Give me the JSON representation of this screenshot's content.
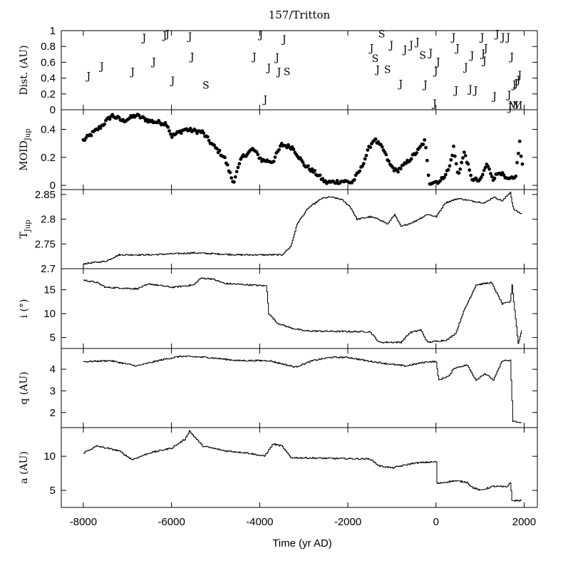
{
  "chart_data": {
    "type": "line",
    "title": "157/Tritton",
    "xlabel": "Time (yr AD)",
    "xlim": [
      -8500,
      2300
    ],
    "xticks": [
      -8000,
      -6000,
      -4000,
      -2000,
      0,
      2000
    ],
    "panels": [
      {
        "id": "dist",
        "ylabel": "Dist. (AU)",
        "kind": "letters",
        "ylim": [
          0,
          1
        ],
        "yticks": [
          0,
          0.2,
          0.4,
          0.6,
          0.8,
          1
        ],
        "ytick_labels": [
          "0",
          "0.2",
          "0.4",
          "0.6",
          "0.8",
          "1"
        ],
        "points": [
          {
            "x": -7880,
            "y": 0.43,
            "label": "J"
          },
          {
            "x": -7580,
            "y": 0.55,
            "label": "J"
          },
          {
            "x": -6880,
            "y": 0.48,
            "label": "J"
          },
          {
            "x": -6620,
            "y": 0.91,
            "label": "J"
          },
          {
            "x": -6400,
            "y": 0.61,
            "label": "J"
          },
          {
            "x": -6150,
            "y": 0.94,
            "label": "J"
          },
          {
            "x": -6090,
            "y": 0.96,
            "label": "J"
          },
          {
            "x": -5970,
            "y": 0.37,
            "label": "J"
          },
          {
            "x": -5580,
            "y": 0.93,
            "label": "J"
          },
          {
            "x": -5530,
            "y": 0.67,
            "label": "J"
          },
          {
            "x": -5220,
            "y": 0.31,
            "label": "S"
          },
          {
            "x": -4120,
            "y": 0.67,
            "label": "J"
          },
          {
            "x": -3970,
            "y": 0.95,
            "label": "J"
          },
          {
            "x": -3870,
            "y": 0.13,
            "label": "J"
          },
          {
            "x": -3790,
            "y": 0.53,
            "label": "J"
          },
          {
            "x": -3600,
            "y": 0.66,
            "label": "J"
          },
          {
            "x": -3560,
            "y": 0.48,
            "label": "J"
          },
          {
            "x": -3440,
            "y": 0.89,
            "label": "J"
          },
          {
            "x": -3380,
            "y": 0.48,
            "label": "S"
          },
          {
            "x": -1460,
            "y": 0.78,
            "label": "J"
          },
          {
            "x": -1380,
            "y": 0.65,
            "label": "S"
          },
          {
            "x": -1320,
            "y": 0.51,
            "label": "J"
          },
          {
            "x": -1230,
            "y": 0.96,
            "label": "S"
          },
          {
            "x": -1100,
            "y": 0.51,
            "label": "S"
          },
          {
            "x": -1010,
            "y": 0.82,
            "label": "J"
          },
          {
            "x": -800,
            "y": 0.33,
            "label": "J"
          },
          {
            "x": -700,
            "y": 0.76,
            "label": "J"
          },
          {
            "x": -560,
            "y": 0.82,
            "label": "J"
          },
          {
            "x": -420,
            "y": 0.86,
            "label": "J"
          },
          {
            "x": -300,
            "y": 0.69,
            "label": "S"
          },
          {
            "x": -240,
            "y": 0.32,
            "label": "J"
          },
          {
            "x": -120,
            "y": 0.72,
            "label": "J"
          },
          {
            "x": -30,
            "y": 0.08,
            "label": "J"
          },
          {
            "x": 0,
            "y": 0.49,
            "label": "J"
          },
          {
            "x": 50,
            "y": 0.61,
            "label": "J"
          },
          {
            "x": 400,
            "y": 0.92,
            "label": "J"
          },
          {
            "x": 460,
            "y": 0.25,
            "label": "J"
          },
          {
            "x": 490,
            "y": 0.78,
            "label": "J"
          },
          {
            "x": 680,
            "y": 0.54,
            "label": "J"
          },
          {
            "x": 780,
            "y": 0.26,
            "label": "J"
          },
          {
            "x": 820,
            "y": 0.69,
            "label": "J"
          },
          {
            "x": 900,
            "y": 0.25,
            "label": "J"
          },
          {
            "x": 1050,
            "y": 0.92,
            "label": "J"
          },
          {
            "x": 1070,
            "y": 0.71,
            "label": "J"
          },
          {
            "x": 1100,
            "y": 0.62,
            "label": "J"
          },
          {
            "x": 1130,
            "y": 0.78,
            "label": "J"
          },
          {
            "x": 1330,
            "y": 0.17,
            "label": "J"
          },
          {
            "x": 1390,
            "y": 0.96,
            "label": "J"
          },
          {
            "x": 1520,
            "y": 0.92,
            "label": "J"
          },
          {
            "x": 1640,
            "y": 0.92,
            "label": "J"
          },
          {
            "x": 1660,
            "y": 0.19,
            "label": "J"
          },
          {
            "x": 1680,
            "y": 0.03,
            "label": "J"
          },
          {
            "x": 1720,
            "y": 0.67,
            "label": "J"
          },
          {
            "x": 1760,
            "y": 0.06,
            "label": "M"
          },
          {
            "x": 1780,
            "y": 0.32,
            "label": "J"
          },
          {
            "x": 1820,
            "y": 0.34,
            "label": "J"
          },
          {
            "x": 1850,
            "y": 0.06,
            "label": "M"
          },
          {
            "x": 1870,
            "y": 0.38,
            "label": "J"
          },
          {
            "x": 1900,
            "y": 0.44,
            "label": "J"
          }
        ]
      },
      {
        "id": "moid",
        "ylabel": "MOID",
        "ylabel_sub": "Jup",
        "kind": "dots",
        "ylim": [
          -0.03,
          0.54
        ],
        "yticks": [
          0,
          0.2,
          0.4
        ],
        "ytick_labels": [
          "0",
          "0.2",
          "0.4"
        ],
        "knots": [
          [
            -8000,
            0.32
          ],
          [
            -7600,
            0.42
          ],
          [
            -7350,
            0.5
          ],
          [
            -7100,
            0.46
          ],
          [
            -6800,
            0.5
          ],
          [
            -6500,
            0.46
          ],
          [
            -6100,
            0.44
          ],
          [
            -6000,
            0.35
          ],
          [
            -5700,
            0.4
          ],
          [
            -5300,
            0.38
          ],
          [
            -5100,
            0.3
          ],
          [
            -4800,
            0.2
          ],
          [
            -4600,
            0.02
          ],
          [
            -4400,
            0.2
          ],
          [
            -4150,
            0.26
          ],
          [
            -3950,
            0.18
          ],
          [
            -3700,
            0.17
          ],
          [
            -3500,
            0.29
          ],
          [
            -3250,
            0.27
          ],
          [
            -3000,
            0.15
          ],
          [
            -2700,
            0.08
          ],
          [
            -2500,
            0.02
          ],
          [
            -2100,
            0.03
          ],
          [
            -1900,
            0.02
          ],
          [
            -1700,
            0.12
          ],
          [
            -1500,
            0.28
          ],
          [
            -1400,
            0.33
          ],
          [
            -1200,
            0.26
          ],
          [
            -1050,
            0.15
          ],
          [
            -900,
            0.1
          ],
          [
            -700,
            0.15
          ],
          [
            -400,
            0.25
          ],
          [
            -250,
            0.32
          ],
          [
            -150,
            0.02
          ],
          [
            100,
            0.03
          ],
          [
            300,
            0.12
          ],
          [
            400,
            0.27
          ],
          [
            500,
            0.07
          ],
          [
            650,
            0.24
          ],
          [
            800,
            0.05
          ],
          [
            1000,
            0.03
          ],
          [
            1150,
            0.15
          ],
          [
            1300,
            0.05
          ],
          [
            1450,
            0.1
          ],
          [
            1600,
            0.04
          ],
          [
            1800,
            0.05
          ],
          [
            1900,
            0.31
          ],
          [
            1950,
            0.14
          ]
        ]
      },
      {
        "id": "tjup",
        "ylabel": "T",
        "ylabel_sub": "Jup",
        "kind": "line",
        "ylim": [
          2.7,
          2.86
        ],
        "yticks": [
          2.7,
          2.75,
          2.8,
          2.85
        ],
        "ytick_labels": [
          "2.7",
          "2.75",
          "2.8",
          "2.85"
        ],
        "knots": [
          [
            -8000,
            2.71
          ],
          [
            -7500,
            2.715
          ],
          [
            -7200,
            2.728
          ],
          [
            -6500,
            2.728
          ],
          [
            -5500,
            2.732
          ],
          [
            -4500,
            2.728
          ],
          [
            -3500,
            2.728
          ],
          [
            -3300,
            2.745
          ],
          [
            -3150,
            2.792
          ],
          [
            -2900,
            2.823
          ],
          [
            -2600,
            2.842
          ],
          [
            -2400,
            2.845
          ],
          [
            -2150,
            2.84
          ],
          [
            -1950,
            2.825
          ],
          [
            -1800,
            2.8
          ],
          [
            -1500,
            2.805
          ],
          [
            -1300,
            2.8
          ],
          [
            -1100,
            2.79
          ],
          [
            -950,
            2.81
          ],
          [
            -800,
            2.785
          ],
          [
            -500,
            2.795
          ],
          [
            -200,
            2.81
          ],
          [
            0,
            2.805
          ],
          [
            200,
            2.833
          ],
          [
            500,
            2.842
          ],
          [
            800,
            2.837
          ],
          [
            1100,
            2.833
          ],
          [
            1300,
            2.845
          ],
          [
            1500,
            2.837
          ],
          [
            1680,
            2.855
          ],
          [
            1750,
            2.82
          ],
          [
            1950,
            2.81
          ]
        ]
      },
      {
        "id": "incl",
        "ylabel": "i (°)",
        "kind": "line",
        "ylim": [
          2.7,
          19.4
        ],
        "yticks": [
          5,
          10,
          15
        ],
        "ytick_labels": [
          "5",
          "10",
          "15"
        ],
        "knots": [
          [
            -8000,
            17
          ],
          [
            -7700,
            16.5
          ],
          [
            -7500,
            15.5
          ],
          [
            -6800,
            15.2
          ],
          [
            -6500,
            16.2
          ],
          [
            -6000,
            15.5
          ],
          [
            -5500,
            16
          ],
          [
            -5350,
            17.4
          ],
          [
            -5100,
            17.3
          ],
          [
            -4800,
            16.3
          ],
          [
            -4200,
            16
          ],
          [
            -3850,
            15.8
          ],
          [
            -3800,
            10
          ],
          [
            -3600,
            8
          ],
          [
            -3300,
            7
          ],
          [
            -3000,
            6.4
          ],
          [
            -2500,
            6.3
          ],
          [
            -1500,
            6.2
          ],
          [
            -1300,
            4
          ],
          [
            -800,
            4
          ],
          [
            -600,
            6
          ],
          [
            -350,
            6.6
          ],
          [
            -200,
            4
          ],
          [
            250,
            4.5
          ],
          [
            450,
            6
          ],
          [
            600,
            10
          ],
          [
            900,
            16
          ],
          [
            1250,
            16.5
          ],
          [
            1500,
            12
          ],
          [
            1680,
            12.5
          ],
          [
            1720,
            16
          ],
          [
            1860,
            3.7
          ],
          [
            1950,
            7
          ]
        ]
      },
      {
        "id": "peri",
        "ylabel": "q (AU)",
        "kind": "line",
        "ylim": [
          1.3,
          4.96
        ],
        "yticks": [
          2,
          3,
          4
        ],
        "ytick_labels": [
          "2",
          "3",
          "4"
        ],
        "knots": [
          [
            -8000,
            4.35
          ],
          [
            -7400,
            4.4
          ],
          [
            -6800,
            4.15
          ],
          [
            -6200,
            4.45
          ],
          [
            -5800,
            4.6
          ],
          [
            -5200,
            4.55
          ],
          [
            -4500,
            4.4
          ],
          [
            -3800,
            4.4
          ],
          [
            -3200,
            4.1
          ],
          [
            -2800,
            4.4
          ],
          [
            -2400,
            4.55
          ],
          [
            -2000,
            4.55
          ],
          [
            -1600,
            4.4
          ],
          [
            -1100,
            4.25
          ],
          [
            -700,
            4.15
          ],
          [
            -200,
            4.35
          ],
          [
            0,
            4.35
          ],
          [
            50,
            3.5
          ],
          [
            300,
            3.7
          ],
          [
            400,
            4.05
          ],
          [
            700,
            4.2
          ],
          [
            900,
            3.5
          ],
          [
            1100,
            3.8
          ],
          [
            1300,
            3.5
          ],
          [
            1500,
            4.4
          ],
          [
            1680,
            4.4
          ],
          [
            1740,
            1.6
          ],
          [
            1950,
            1.5
          ]
        ]
      },
      {
        "id": "semi",
        "ylabel": "a (AU)",
        "kind": "line",
        "ylim": [
          2.5,
          14.2
        ],
        "yticks": [
          5,
          10
        ],
        "ytick_labels": [
          "5",
          "10"
        ],
        "knots": [
          [
            -8000,
            10.5
          ],
          [
            -7700,
            11.5
          ],
          [
            -7200,
            10.8
          ],
          [
            -6900,
            9.5
          ],
          [
            -6500,
            10.5
          ],
          [
            -6000,
            11.2
          ],
          [
            -5700,
            12.5
          ],
          [
            -5600,
            13.7
          ],
          [
            -5300,
            11.5
          ],
          [
            -4800,
            10.8
          ],
          [
            -4300,
            10.5
          ],
          [
            -3900,
            10
          ],
          [
            -3700,
            11.8
          ],
          [
            -3500,
            11.5
          ],
          [
            -3300,
            9.8
          ],
          [
            -2500,
            9.7
          ],
          [
            -1500,
            9.6
          ],
          [
            -1300,
            8.6
          ],
          [
            -1000,
            8.3
          ],
          [
            -500,
            9
          ],
          [
            0,
            9.2
          ],
          [
            20,
            6
          ],
          [
            400,
            6.4
          ],
          [
            700,
            6.2
          ],
          [
            800,
            5.5
          ],
          [
            1000,
            5
          ],
          [
            1300,
            5.6
          ],
          [
            1600,
            5.5
          ],
          [
            1680,
            6.2
          ],
          [
            1720,
            3.5
          ],
          [
            1950,
            3.5
          ]
        ]
      }
    ]
  }
}
